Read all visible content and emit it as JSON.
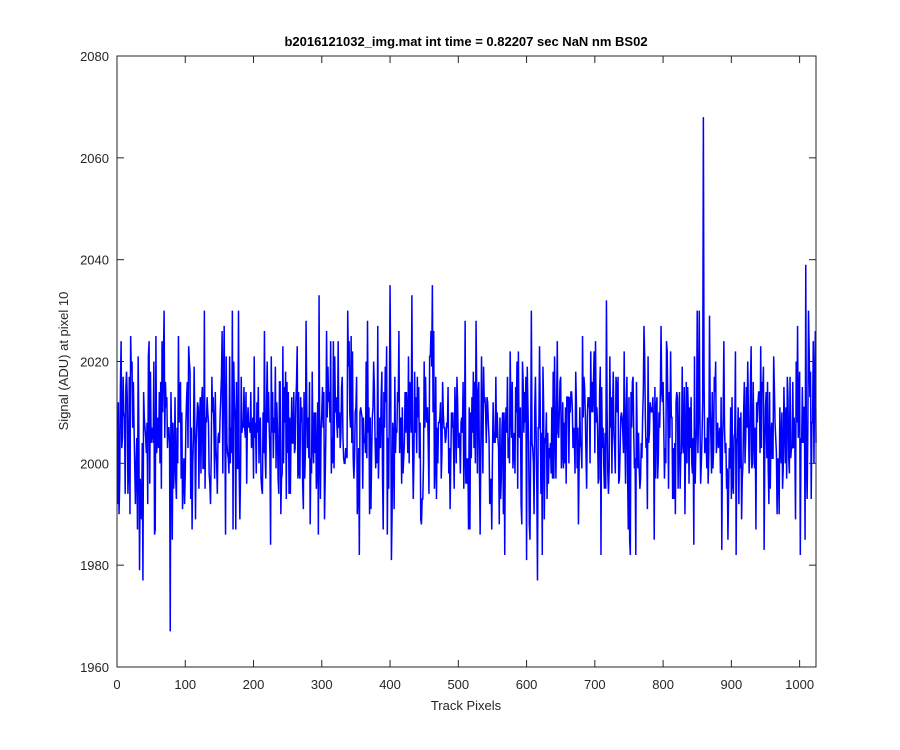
{
  "chart_data": {
    "type": "line",
    "title": "b2016121032_img.mat int time = 0.82207 sec  NaN nm BS02",
    "xlabel": "Track Pixels",
    "ylabel": "Signal (ADU) at pixel 10",
    "xlim": [
      0,
      1024
    ],
    "ylim": [
      1960,
      2080
    ],
    "xticks": [
      0,
      100,
      200,
      300,
      400,
      500,
      600,
      700,
      800,
      900,
      1000
    ],
    "yticks": [
      1960,
      1980,
      2000,
      2020,
      2040,
      2060,
      2080
    ],
    "xtick_labels": [
      "0",
      "100",
      "200",
      "300",
      "400",
      "500",
      "600",
      "700",
      "800",
      "900",
      "1000"
    ],
    "ytick_labels": [
      "1960",
      "1980",
      "2000",
      "2020",
      "2040",
      "2060",
      "2080"
    ],
    "grid": false,
    "legend": "none",
    "series": [
      {
        "color": "#0000ff",
        "summary": {
          "n_points": 1024,
          "mean": 2006,
          "std": 9,
          "seed": 20161210
        },
        "points": [
          [
            1,
            1992
          ],
          [
            6,
            2024
          ],
          [
            12,
            1994
          ],
          [
            20,
            2025
          ],
          [
            30,
            1987
          ],
          [
            33,
            1979
          ],
          [
            38,
            1977
          ],
          [
            47,
            2024
          ],
          [
            55,
            1986
          ],
          [
            66,
            2024
          ],
          [
            78,
            1967
          ],
          [
            81,
            1985
          ],
          [
            90,
            2025
          ],
          [
            100,
            1998
          ],
          [
            117,
            2008
          ],
          [
            128,
            2030
          ],
          [
            147,
            1994
          ],
          [
            175,
            2016
          ],
          [
            200,
            1997
          ],
          [
            232,
            2019
          ],
          [
            264,
            2023
          ],
          [
            277,
            2028
          ],
          [
            283,
            1988
          ],
          [
            296,
            2033
          ],
          [
            300,
            2010
          ],
          [
            307,
            2026
          ],
          [
            313,
            2024
          ],
          [
            330,
            2017
          ],
          [
            338,
            2030
          ],
          [
            355,
            1982
          ],
          [
            376,
            2020
          ],
          [
            390,
            1987
          ],
          [
            400,
            2035
          ],
          [
            402,
            1981
          ],
          [
            432,
            2033
          ],
          [
            460,
            2026
          ],
          [
            462,
            2035
          ],
          [
            464,
            2026
          ],
          [
            466,
            2000
          ],
          [
            478,
            2010
          ],
          [
            493,
            2003
          ],
          [
            510,
            2028
          ],
          [
            549,
            1987
          ],
          [
            566,
            1990
          ],
          [
            595,
            2016
          ],
          [
            600,
            1981
          ],
          [
            607,
            2030
          ],
          [
            610,
            2000
          ],
          [
            616,
            1977
          ],
          [
            620,
            2012
          ],
          [
            623,
            1982
          ],
          [
            655,
            2008
          ],
          [
            684,
            2017
          ],
          [
            703,
            2011
          ],
          [
            717,
            2032
          ],
          [
            727,
            2018
          ],
          [
            758,
            1999
          ],
          [
            783,
            2011
          ],
          [
            810,
            2005
          ],
          [
            833,
            2004
          ],
          [
            850,
            2030
          ],
          [
            853,
            2030
          ],
          [
            859,
            2068
          ],
          [
            862,
            2004
          ],
          [
            875,
            2017
          ],
          [
            895,
            1985
          ],
          [
            910,
            2011
          ],
          [
            940,
            2014
          ],
          [
            948,
            1983
          ],
          [
            970,
            1990
          ],
          [
            995,
            2020
          ],
          [
            1005,
            2004
          ],
          [
            1009,
            2039
          ],
          [
            1013,
            2030
          ],
          [
            1020,
            2024
          ],
          [
            1024,
            2004
          ]
        ]
      }
    ]
  }
}
